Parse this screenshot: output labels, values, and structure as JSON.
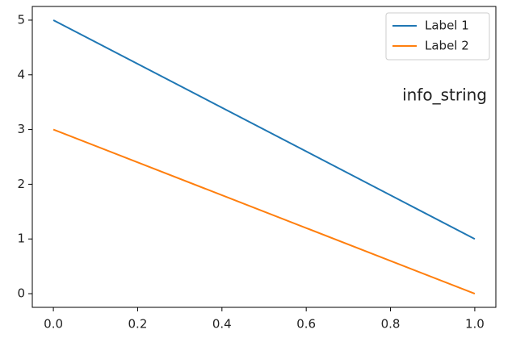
{
  "chart_data": {
    "type": "line",
    "x": [
      0,
      1
    ],
    "series": [
      {
        "name": "Label 1",
        "color": "#1f77b4",
        "values": [
          5,
          1
        ]
      },
      {
        "name": "Label 2",
        "color": "#ff7f0e",
        "values": [
          3,
          0
        ]
      }
    ],
    "xlim": [
      -0.05,
      1.05
    ],
    "xticks": [
      {
        "value": 0,
        "label": "0.0"
      },
      {
        "value": 0.2,
        "label": "0.2"
      },
      {
        "value": 0.4,
        "label": "0.4"
      },
      {
        "value": 0.6,
        "label": "0.6"
      },
      {
        "value": 0.8,
        "label": "0.8"
      },
      {
        "value": 1,
        "label": "1.0"
      }
    ],
    "ylim": [
      -0.25,
      5.25
    ],
    "yticks": [
      0,
      1,
      2,
      3,
      4,
      5
    ],
    "annotation": "info_string",
    "legend": "upper right",
    "grid": false
  }
}
